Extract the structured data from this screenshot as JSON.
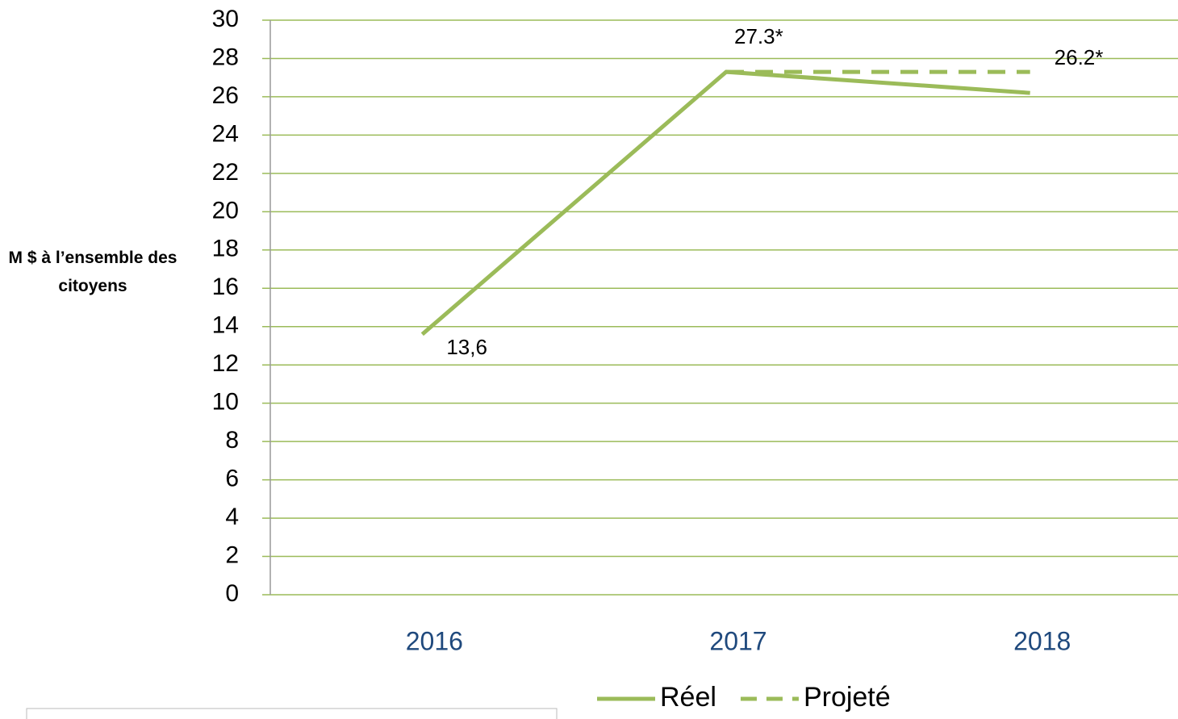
{
  "chart_data": {
    "type": "line",
    "y_label": "M $ à l’ensemble des citoyens",
    "categories": [
      "2016",
      "2017",
      "2018"
    ],
    "series": [
      {
        "name": "Réel",
        "color": "#9bbb59",
        "dash": false,
        "values": [
          13.6,
          27.3,
          26.2
        ],
        "value_labels": [
          "13,6",
          "27.3*",
          "26.2*"
        ]
      },
      {
        "name": "Projeté",
        "color": "#9bbb59",
        "dash": true,
        "values": [
          null,
          27.3,
          27.3
        ]
      }
    ],
    "ylim": [
      0,
      30
    ],
    "yticks": [
      0,
      2,
      4,
      6,
      8,
      10,
      12,
      14,
      16,
      18,
      20,
      22,
      24,
      26,
      28,
      30
    ],
    "grid": true,
    "grid_color": "#9bbb59",
    "legend": "bottom"
  }
}
